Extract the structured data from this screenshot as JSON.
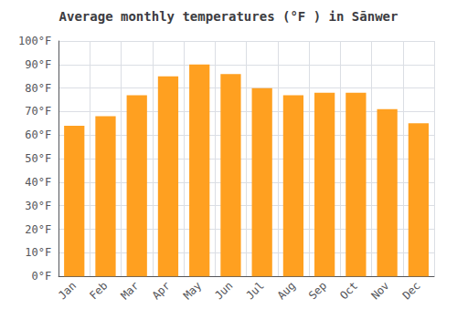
{
  "chart_data": {
    "type": "bar",
    "title": "Average monthly temperatures (°F ) in Sānwer",
    "categories": [
      "Jan",
      "Feb",
      "Mar",
      "Apr",
      "May",
      "Jun",
      "Jul",
      "Aug",
      "Sep",
      "Oct",
      "Nov",
      "Dec"
    ],
    "values": [
      64,
      68,
      77,
      85,
      90,
      86,
      80,
      77,
      78,
      78,
      71,
      65
    ],
    "color": "#FFA020",
    "ylim": [
      0,
      100
    ],
    "yticks": [
      {
        "value": 0,
        "label": "0°F"
      },
      {
        "value": 10,
        "label": "10°F"
      },
      {
        "value": 20,
        "label": "20°F"
      },
      {
        "value": 30,
        "label": "30°F"
      },
      {
        "value": 40,
        "label": "40°F"
      },
      {
        "value": 50,
        "label": "50°F"
      },
      {
        "value": 60,
        "label": "60°F"
      },
      {
        "value": 70,
        "label": "70°F"
      },
      {
        "value": 80,
        "label": "80°F"
      },
      {
        "value": 90,
        "label": "90°F"
      },
      {
        "value": 100,
        "label": "100°F"
      }
    ],
    "grid": true
  }
}
